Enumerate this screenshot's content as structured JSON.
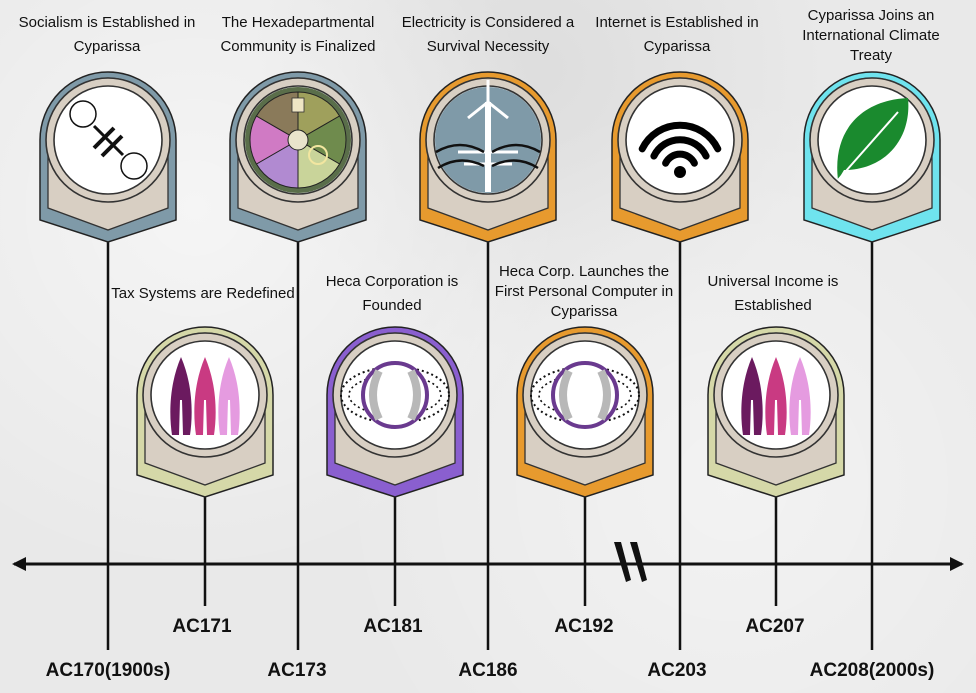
{
  "events_top": [
    {
      "title": "Socialism is Established in Cyparissa",
      "year": "AC170(1900s)",
      "icon": "socialism-symbol-icon",
      "color": "#7f9aa8"
    },
    {
      "title": "The Hexadepartmental Community is Finalized",
      "year": "AC173",
      "icon": "hexadepartmental-emblem-icon",
      "color": "#7f9aa8"
    },
    {
      "title": "Electricity is Considered a Survival Necessity",
      "year": "AC186",
      "icon": "power-tower-icon",
      "color": "#e79a2e"
    },
    {
      "title": "Internet is Established in Cyparissa",
      "year": "AC203",
      "icon": "wifi-icon",
      "color": "#e79a2e"
    },
    {
      "title": "Cyparissa Joins an International Climate Treaty",
      "year": "AC208(2000s)",
      "icon": "leaf-icon",
      "color": "#6fe3ee"
    }
  ],
  "events_bottom": [
    {
      "title": "Tax Systems are Redefined",
      "year": "AC171",
      "icon": "cypress-trees-icon",
      "color": "#d5d8a8"
    },
    {
      "title": "Heca Corporation is Founded",
      "year": "AC181",
      "icon": "heca-logo-icon",
      "color": "#8a5fcf"
    },
    {
      "title": "Heca Corp. Launches the First Personal Computer in Cyparissa",
      "year": "AC192",
      "icon": "heca-logo-icon",
      "color": "#e79a2e"
    },
    {
      "title": "Universal Income is Established",
      "year": "AC207",
      "icon": "cypress-trees-icon",
      "color": "#d5d8a8"
    }
  ]
}
